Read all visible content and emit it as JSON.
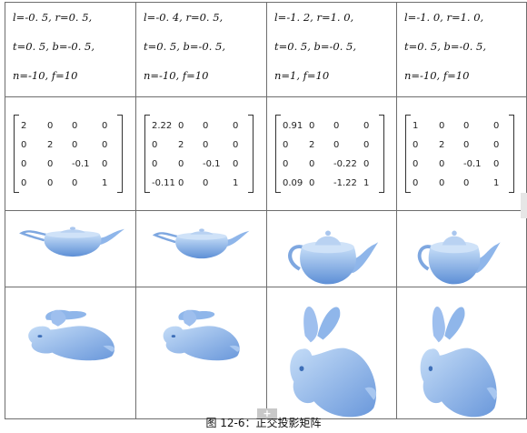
{
  "parameters": [
    [
      "l=-0. 5, r=0. 5,",
      "t=0. 5, b=-0. 5,",
      "n=-10, f=10"
    ],
    [
      "l=-0. 4, r=0. 5,",
      "t=0. 5, b=-0. 5,",
      "n=-10, f=10"
    ],
    [
      "l=-1. 2, r=1. 0,",
      "t=0. 5, b=-0. 5,",
      "n=1, f=10"
    ],
    [
      "l=-1. 0, r=1. 0,",
      "t=0. 5, b=-0. 5,",
      "n=-10, f=10"
    ]
  ],
  "matrices": [
    [
      [
        "2",
        "0",
        "0",
        "0"
      ],
      [
        "0",
        "2",
        "0",
        "0"
      ],
      [
        "0",
        "0",
        "-0.1",
        "0"
      ],
      [
        "0",
        "0",
        "0",
        "1"
      ]
    ],
    [
      [
        "2.22",
        "0",
        "0",
        "0"
      ],
      [
        "0",
        "2",
        "0",
        "0"
      ],
      [
        "0",
        "0",
        "-0.1",
        "0"
      ],
      [
        "-0.11",
        "0",
        "0",
        "1"
      ]
    ],
    [
      [
        "0.91",
        "0",
        "0",
        "0"
      ],
      [
        "0",
        "2",
        "0",
        "0"
      ],
      [
        "0",
        "0",
        "-0.22",
        "0"
      ],
      [
        "0.09",
        "0",
        "-1.22",
        "1"
      ]
    ],
    [
      [
        "1",
        "0",
        "0",
        "0"
      ],
      [
        "0",
        "2",
        "0",
        "0"
      ],
      [
        "0",
        "0",
        "-0.1",
        "0"
      ],
      [
        "0",
        "0",
        "0",
        "1"
      ]
    ]
  ],
  "teapot_figures": [
    "teapot",
    "teapot",
    "teapot",
    "teapot"
  ],
  "bunny_figures": [
    "bunny",
    "bunny",
    "bunny",
    "bunny"
  ],
  "caption": "图 12-6：正交投影矩阵",
  "overlay": {
    "plus": "+",
    "side_tab": ""
  },
  "colors": {
    "model_fill": "#8fb6ea",
    "model_dark": "#5d8fd6",
    "model_light": "#c4dcf7",
    "border": "#6e6e6e"
  }
}
